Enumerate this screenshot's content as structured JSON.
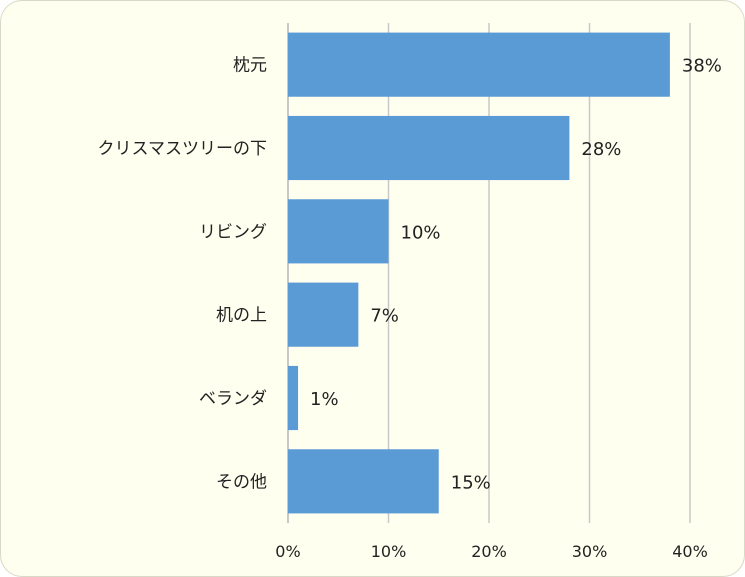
{
  "chart_data": {
    "type": "bar",
    "orientation": "horizontal",
    "categories": [
      "枕元",
      "クリスマスツリーの下",
      "リビング",
      "机の上",
      "ベランダ",
      "その他"
    ],
    "values": [
      38,
      28,
      10,
      7,
      1,
      15
    ],
    "data_labels": [
      "38%",
      "28%",
      "10%",
      "7%",
      "1%",
      "15%"
    ],
    "xlim": [
      0,
      40
    ],
    "x_ticks": [
      0,
      10,
      20,
      30,
      40
    ],
    "x_tick_labels": [
      "0%",
      "10%",
      "20%",
      "30%",
      "40%"
    ],
    "grid": true,
    "legend": "none",
    "bar_color": "#5b9bd5",
    "grid_color": "#c8c8c8",
    "background_color": "#fffff0"
  }
}
